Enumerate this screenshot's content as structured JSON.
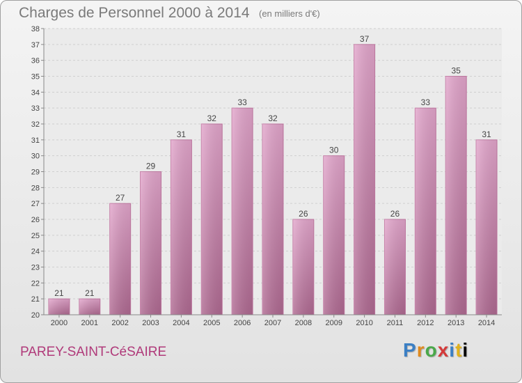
{
  "title": "Charges de Personnel 2000 à 2014",
  "subtitle": "(en milliers d'€)",
  "commune": "PAREY-SAINT-CéSAIRE",
  "logo": {
    "letters": [
      "P",
      "r",
      "o",
      "x",
      "i",
      "t",
      "i"
    ]
  },
  "colors": {
    "bar": "#d98fbb",
    "bar_dark": "#b4688f",
    "title": "#7a7a7a",
    "commune": "#b03a7a"
  },
  "chart_data": {
    "type": "bar",
    "title": "Charges de Personnel 2000 à 2014",
    "subtitle": "(en milliers d'€)",
    "xlabel": "",
    "ylabel": "",
    "categories": [
      "2000",
      "2001",
      "2002",
      "2003",
      "2004",
      "2005",
      "2006",
      "2007",
      "2008",
      "2009",
      "2010",
      "2011",
      "2012",
      "2013",
      "2014"
    ],
    "values": [
      21,
      21,
      27,
      29,
      31,
      32,
      33,
      32,
      26,
      30,
      37,
      26,
      33,
      35,
      31
    ],
    "ylim": [
      20,
      38
    ],
    "yticks": [
      20,
      21,
      22,
      23,
      24,
      25,
      26,
      27,
      28,
      29,
      30,
      31,
      32,
      33,
      34,
      35,
      36,
      37,
      38
    ],
    "grid": true,
    "legend": "none"
  }
}
